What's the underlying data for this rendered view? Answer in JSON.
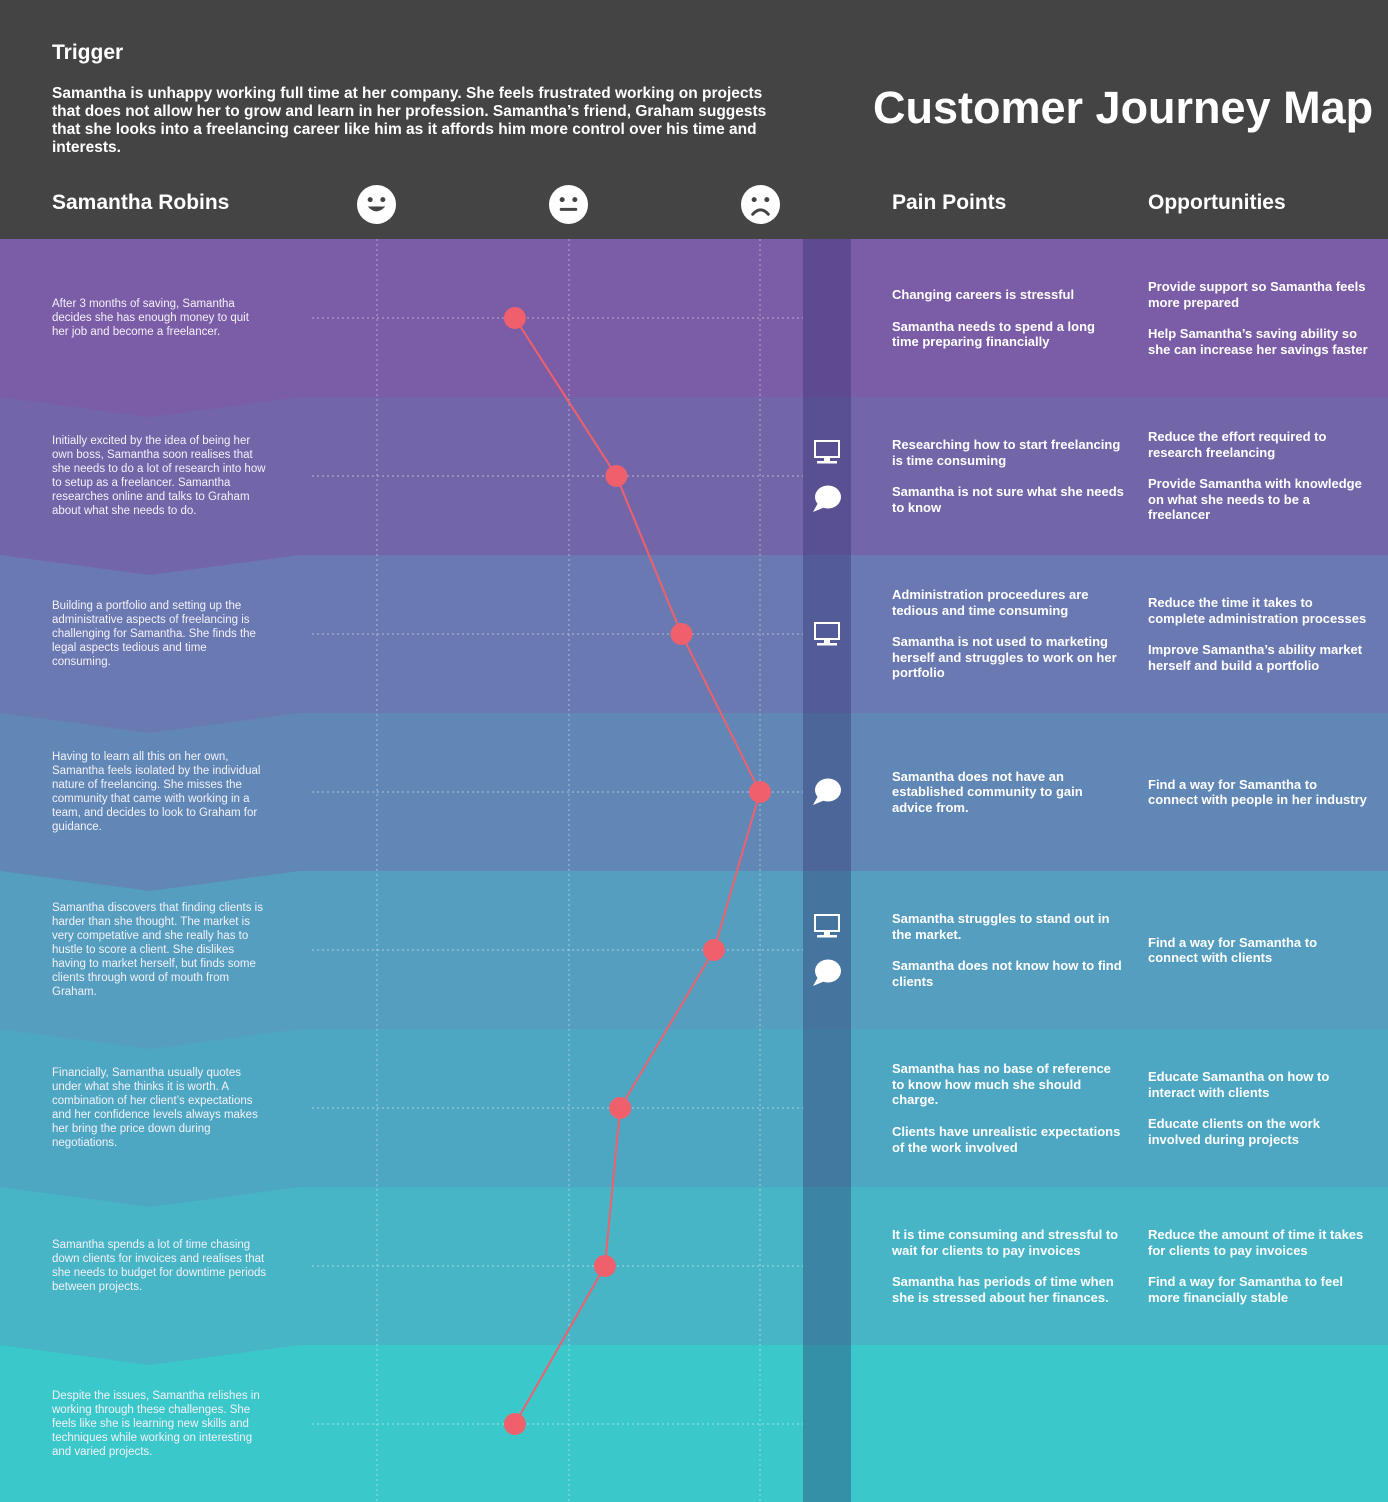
{
  "header": {
    "trigger_label": "Trigger",
    "trigger_text": "Samantha is unhappy working full time at her company. She feels frustrated working on projects that does not allow her to grow and learn in her profession. Samantha’s friend, Graham suggests that she looks into a freelancing career like him as it affords him more control over his time and interests.",
    "title": "Customer Journey Map",
    "persona": "Samantha Robins",
    "pain_points": "Pain Points",
    "opportunities": "Opportunities"
  },
  "emotion_faces": [
    "happy-face-icon",
    "neutral-face-icon",
    "sad-face-icon"
  ],
  "colors": {
    "header": "#444444",
    "bands": [
      "#7b5ca6",
      "#7266a9",
      "#6b79b2",
      "#6187b6",
      "#559ebf",
      "#4ea7c2",
      "#47b5c6",
      "#3ac8ca"
    ],
    "touchpoint_column": "rgba(40,40,100,0.35)",
    "line": "#f0606c"
  },
  "chart_data": {
    "type": "line",
    "scale": [
      "happy",
      "neutral",
      "sad"
    ],
    "values": [
      1.72,
      2.25,
      2.59,
      3.0,
      2.76,
      2.27,
      2.19,
      1.72
    ]
  },
  "stages": [
    {
      "description": "After 3 months of saving, Samantha decides she has enough money to quit her job and become a freelancer.",
      "touchpoints": [],
      "pain_points": [
        "Changing careers is stressful",
        "Samantha needs to spend a long time preparing financially"
      ],
      "opportunities": [
        "Provide support so Samantha feels more prepared",
        "Help Samantha’s saving ability so she can increase her savings faster"
      ]
    },
    {
      "description": "Initially excited by the idea of being her own boss, Samantha soon realises that she needs to do a lot of research into how to setup as a freelancer. Samantha researches online and talks to Graham about what she needs to do.",
      "touchpoints": [
        "computer-icon",
        "chat-bubble-icon"
      ],
      "pain_points": [
        "Researching how to start freelancing is time consuming",
        "Samantha is not sure what she needs to know"
      ],
      "opportunities": [
        "Reduce the effort required to research freelancing",
        "Provide Samantha with knowledge on what she needs to be a freelancer"
      ]
    },
    {
      "description": "Building a portfolio and setting up the administrative aspects of freelancing is challenging for Samantha. She finds the legal aspects tedious and time consuming.",
      "touchpoints": [
        "computer-icon"
      ],
      "pain_points": [
        "Administration proceedures are tedious and time consuming",
        "Samantha is not used to marketing herself and struggles to work on her portfolio"
      ],
      "opportunities": [
        "Reduce the time it takes to complete administration processes",
        "Improve Samantha’s ability market herself and build a portfolio"
      ]
    },
    {
      "description": "Having to learn all this on her own, Samantha feels isolated by the individual nature of freelancing. She misses the community that came with working in a team, and decides to look to Graham for guidance.",
      "touchpoints": [
        "chat-bubble-icon"
      ],
      "pain_points": [
        "Samantha does not have an established community to gain advice from."
      ],
      "opportunities": [
        "Find a way for Samantha to connect with people in her industry"
      ]
    },
    {
      "description": "Samantha discovers that finding clients is harder than she thought. The market is very competative and she really has to hustle to score a client. She dislikes having to market herself, but finds some clients through word of mouth from Graham.",
      "touchpoints": [
        "computer-icon",
        "chat-bubble-icon"
      ],
      "pain_points": [
        "Samantha struggles to stand out in the market.",
        "Samantha does not know how to find clients"
      ],
      "opportunities": [
        "Find a way for Samantha to connect with clients"
      ]
    },
    {
      "description": "Financially, Samantha usually quotes under what she thinks it is worth. A combination of her client’s expectations and her confidence levels always makes her bring the price down during negotiations.",
      "touchpoints": [],
      "pain_points": [
        "Samantha has no base of reference to know how much she should charge.",
        "Clients have unrealistic expectations of the work involved"
      ],
      "opportunities": [
        "Educate Samantha on how to interact with clients",
        "Educate clients on the work involved during projects"
      ]
    },
    {
      "description": "Samantha spends a lot of time chasing down clients for invoices and realises that she needs to budget for downtime periods between projects.",
      "touchpoints": [],
      "pain_points": [
        "It is time consuming and stressful to wait for clients to pay invoices",
        "Samantha has periods of time when she is stressed about her finances."
      ],
      "opportunities": [
        "Reduce the amount of time it takes for clients to pay invoices",
        "Find a way for Samantha to feel more financially stable"
      ]
    },
    {
      "description": "Despite the issues, Samantha relishes in working through these challenges. She feels like she is learning new skills and techniques while working on interesting and varied projects.",
      "touchpoints": [],
      "pain_points": [],
      "opportunities": []
    }
  ]
}
